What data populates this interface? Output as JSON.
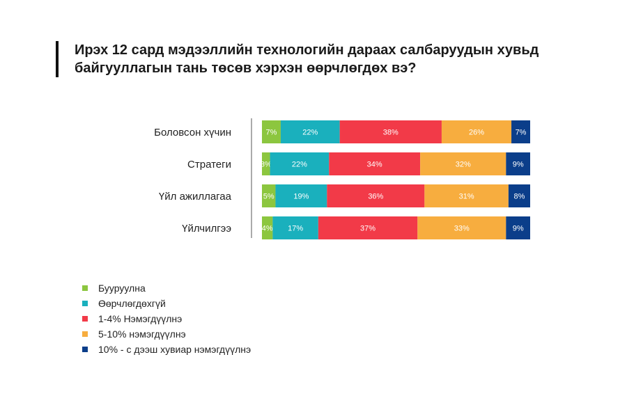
{
  "title": "Ирэх 12 сард мэдээллийн технологийн дараах салбаруудын хувьд байгууллагын тань төсөв хэрхэн өөрчлөгдөх вэ?",
  "chart_data": {
    "type": "bar",
    "orientation": "horizontal",
    "stacked": true,
    "normalized": true,
    "categories": [
      "Боловсон хүчин",
      "Стратеги",
      "Үйл ажиллагаа",
      "Үйлчилгээ"
    ],
    "series": [
      {
        "name": "Бууруулна",
        "color": "#8cc63f",
        "values": [
          7,
          3,
          5,
          4
        ]
      },
      {
        "name": "Өөрчлөгдөхгүй",
        "color": "#1ab0bd",
        "values": [
          22,
          22,
          19,
          17
        ]
      },
      {
        "name": "1-4% Нэмэгдүүлнэ",
        "color": "#f23a48",
        "values": [
          38,
          34,
          36,
          37
        ]
      },
      {
        "name": "5-10% нэмэгдүүлнэ",
        "color": "#f7ad3f",
        "values": [
          26,
          32,
          31,
          33
        ]
      },
      {
        "name": "10% - с дээш хувиар нэмэгдүүлнэ",
        "color": "#0b3e8a",
        "values": [
          7,
          9,
          8,
          9
        ]
      }
    ],
    "value_suffix": "%",
    "legend_position": "bottom-left",
    "grid": false
  }
}
